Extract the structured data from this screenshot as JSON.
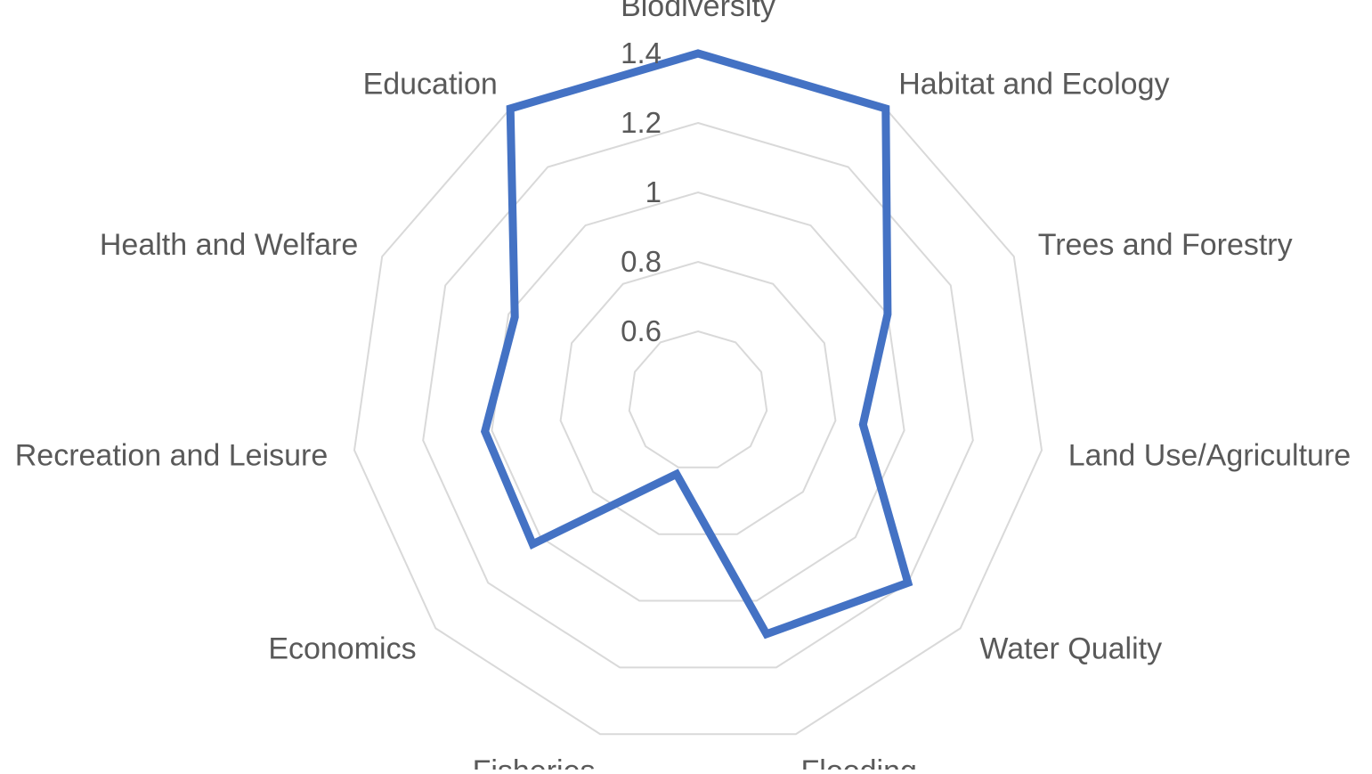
{
  "chart_data": {
    "type": "radar",
    "categories": [
      "Biodiversity",
      "Habitat and Ecology",
      "Trees and Forestry",
      "Land Use/Agriculture",
      "Water Quality",
      "Flooding",
      "Fisheries",
      "Economics",
      "Recreation and Leisure",
      "Health and Welfare",
      "Education"
    ],
    "series": [
      {
        "values": [
          1.4,
          1.4,
          1.0,
          0.88,
          1.2,
          1.1,
          0.62,
          1.03,
          1.02,
          0.98,
          1.4
        ]
      }
    ],
    "rlim": [
      0.4,
      1.4
    ],
    "ticks": [
      0.6,
      0.8,
      1.0,
      1.2,
      1.4
    ],
    "tick_labels": [
      "0.6",
      "0.8",
      "1",
      "1.2",
      "1.4"
    ],
    "gridlines": true,
    "legend": "none",
    "colors": {
      "series": "#4472C4",
      "grid": "#d9d9d9",
      "text": "#595959"
    }
  }
}
